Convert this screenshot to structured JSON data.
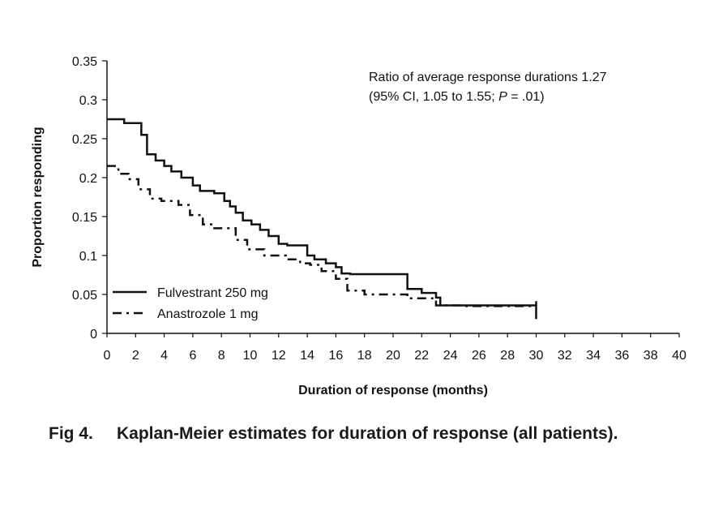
{
  "chart_data": {
    "type": "line",
    "subtype": "kaplan-meier step",
    "xlabel": "Duration of response (months)",
    "ylabel": "Proportion responding",
    "xlim": [
      0,
      40
    ],
    "ylim": [
      0,
      0.35
    ],
    "xticks": [
      0,
      2,
      4,
      6,
      8,
      10,
      12,
      14,
      16,
      18,
      20,
      22,
      24,
      26,
      28,
      30,
      32,
      34,
      36,
      38,
      40
    ],
    "yticks": [
      0,
      0.05,
      0.1,
      0.15,
      0.2,
      0.25,
      0.3,
      0.35
    ],
    "ytick_labels": [
      "0",
      "0.05",
      "0.1",
      "0.15",
      "0.2",
      "0.25",
      "0.3",
      "0.35"
    ],
    "grid": false,
    "legend_position": "bottom-left",
    "annotation": {
      "line1": "Ratio of average response durations 1.27",
      "line2_prefix": "(95% CI, 1.05 to 1.55; ",
      "line2_p": "P",
      "line2_suffix": " = .01)"
    },
    "series": [
      {
        "name": "Fulvestrant 250 mg",
        "style": "solid",
        "color": "#111111",
        "x": [
          0,
          1.2,
          2.4,
          2.8,
          3.4,
          4.0,
          4.5,
          5.2,
          6.0,
          6.5,
          7.5,
          8.2,
          8.6,
          9.0,
          9.5,
          10.1,
          10.7,
          11.3,
          12.0,
          12.6,
          14.0,
          14.5,
          15.3,
          16.0,
          16.4,
          17.0,
          18.0,
          20.0,
          21.0,
          22.0,
          23.0,
          23.3,
          24.0,
          30.0
        ],
        "y": [
          0.275,
          0.27,
          0.255,
          0.23,
          0.222,
          0.215,
          0.208,
          0.2,
          0.19,
          0.183,
          0.18,
          0.17,
          0.163,
          0.155,
          0.145,
          0.14,
          0.133,
          0.125,
          0.115,
          0.113,
          0.1,
          0.095,
          0.09,
          0.085,
          0.077,
          0.076,
          0.076,
          0.076,
          0.057,
          0.052,
          0.046,
          0.036,
          0.036,
          0.036
        ]
      },
      {
        "name": "Anastrozole 1 mg",
        "style": "dash-dot",
        "color": "#111111",
        "x": [
          0,
          0.8,
          1.5,
          2.2,
          3.0,
          3.8,
          5.0,
          5.8,
          6.7,
          7.5,
          9.0,
          9.8,
          11.0,
          12.5,
          13.5,
          14.2,
          15.0,
          16.0,
          16.8,
          18.0,
          21.0,
          23.0,
          25.0,
          30.0
        ],
        "y": [
          0.215,
          0.205,
          0.198,
          0.185,
          0.173,
          0.17,
          0.165,
          0.152,
          0.14,
          0.135,
          0.12,
          0.108,
          0.1,
          0.095,
          0.09,
          0.088,
          0.08,
          0.07,
          0.055,
          0.05,
          0.045,
          0.036,
          0.035,
          0.035
        ]
      }
    ]
  },
  "caption": {
    "figure_label": "Fig 4.",
    "text": "Kaplan-Meier estimates for duration of response (all patients)."
  }
}
